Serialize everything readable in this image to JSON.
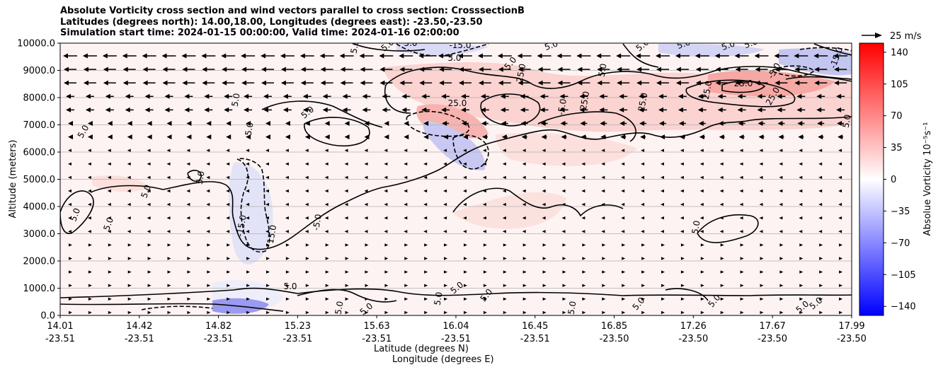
{
  "figure": {
    "title_lines": [
      "Absolute Vorticity cross section and wind vectors parallel to cross section: CrosssectionB",
      "Latitudes (degrees north): 14.00,18.00, Longitudes (degrees east): -23.50,-23.50",
      "Simulation start time: 2024-01-15 00:00:00, Valid time: 2024-01-16 02:00:00"
    ]
  },
  "chart_data": {
    "type": "contour",
    "ylabel": "Altitude (meters)",
    "xlabel_line1": "Latitude (degrees N)",
    "xlabel_line2": "Longitude (degrees E)",
    "ylim": [
      0,
      10000
    ],
    "yticks": [
      "0.0",
      "1000.0",
      "2000.0",
      "3000.0",
      "4000.0",
      "5000.0",
      "6000.0",
      "7000.0",
      "8000.0",
      "9000.0",
      "10000.0"
    ],
    "xticks": [
      {
        "lat": "14.01",
        "lon": "-23.51"
      },
      {
        "lat": "14.42",
        "lon": "-23.51"
      },
      {
        "lat": "14.82",
        "lon": "-23.51"
      },
      {
        "lat": "15.23",
        "lon": "-23.51"
      },
      {
        "lat": "15.63",
        "lon": "-23.51"
      },
      {
        "lat": "16.04",
        "lon": "-23.51"
      },
      {
        "lat": "16.45",
        "lon": "-23.51"
      },
      {
        "lat": "16.85",
        "lon": "-23.50"
      },
      {
        "lat": "17.26",
        "lon": "-23.50"
      },
      {
        "lat": "17.67",
        "lon": "-23.50"
      },
      {
        "lat": "17.99",
        "lon": "-23.50"
      }
    ],
    "colorbar": {
      "label": "Absolue Vorticity 10⁻⁵s⁻¹",
      "ticks": [
        "140",
        "105",
        "70",
        "35",
        "0",
        "−35",
        "−70",
        "−105",
        "−140"
      ],
      "range": [
        -150,
        150
      ],
      "colors": {
        "low": "#0000ff",
        "mid": "#ffffff",
        "high": "#ff0000"
      }
    },
    "quiver_key": "25 m/s",
    "contour_labels": [
      "5.0",
      "15.0",
      "25.0",
      "-15.0",
      "-5.0"
    ],
    "grid": "horizontal"
  }
}
